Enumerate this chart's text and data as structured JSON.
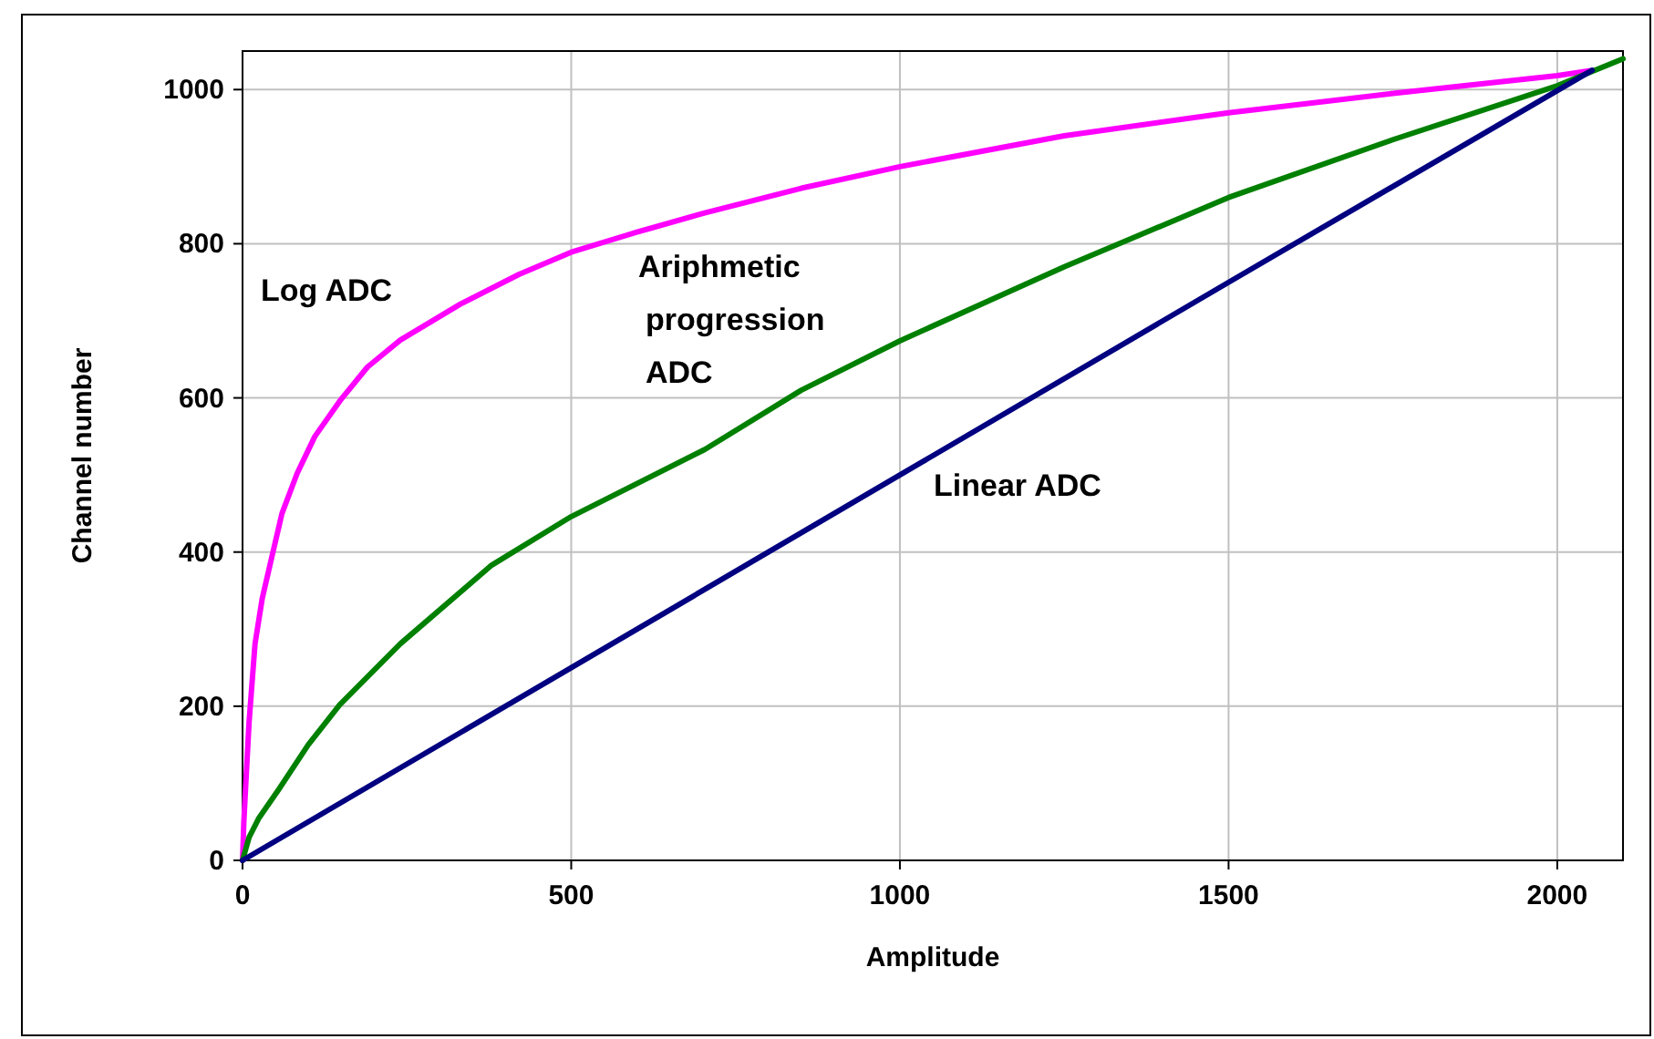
{
  "chart_data": {
    "type": "line",
    "xlabel": "Amplitude",
    "ylabel": "Channel number",
    "xlim": [
      0,
      2100
    ],
    "ylim": [
      0,
      1050
    ],
    "xticks": [
      0,
      500,
      1000,
      1500,
      2000
    ],
    "yticks": [
      0,
      200,
      400,
      600,
      800,
      1000
    ],
    "grid": true,
    "marker": "none",
    "line_style": "solid",
    "series": [
      {
        "name": "Log ADC",
        "color": "#ff00ff",
        "x": [
          0,
          2,
          5,
          10,
          19,
          30,
          46,
          60,
          83,
          110,
          148,
          190,
          240,
          332,
          420,
          500,
          600,
          703,
          850,
          1000,
          1250,
          1500,
          1750,
          2000,
          2053
        ],
        "values": [
          0,
          50,
          100,
          180,
          281,
          340,
          399,
          450,
          502,
          550,
          596,
          640,
          675,
          722,
          760,
          789,
          815,
          840,
          872,
          900,
          940,
          970,
          995,
          1018,
          1025
        ]
      },
      {
        "name": "Ariphmetic\nprogression\nADC",
        "color": "#008000",
        "x": [
          0,
          10,
          25,
          55,
          100,
          148,
          240,
          379,
          500,
          703,
          850,
          1000,
          1250,
          1500,
          1750,
          2000,
          2100
        ],
        "values": [
          0,
          30,
          55,
          92,
          150,
          202,
          281,
          383,
          446,
          533,
          610,
          674,
          770,
          860,
          935,
          1005,
          1040
        ]
      },
      {
        "name": "Linear ADC",
        "color": "#000080",
        "x": [
          0,
          500,
          1000,
          1500,
          2053
        ],
        "values": [
          0,
          250,
          500,
          750,
          1025
        ]
      }
    ]
  }
}
